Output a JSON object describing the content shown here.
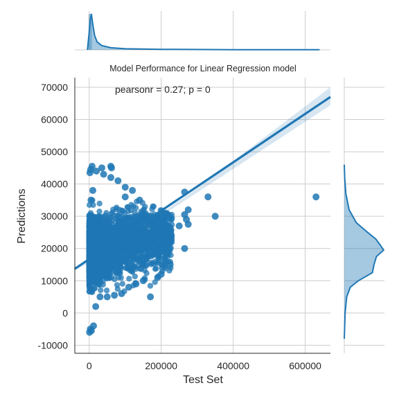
{
  "chart_data": {
    "type": "scatter",
    "title": "Model Performance for Linear Regression model",
    "xlabel": "Test Set",
    "ylabel": "Predictions",
    "annotation": "pearsonr = 0.27; p = 0",
    "xlim": [
      -40000,
      670000
    ],
    "ylim": [
      -12500,
      73000
    ],
    "xticks": [
      0,
      200000,
      400000,
      600000
    ],
    "xtick_labels": [
      "0",
      "200000",
      "400000",
      "600000"
    ],
    "yticks": [
      -10000,
      0,
      10000,
      20000,
      30000,
      40000,
      50000,
      60000,
      70000
    ],
    "ytick_labels": [
      "-10000",
      "0",
      "10000",
      "20000",
      "30000",
      "40000",
      "50000",
      "60000",
      "70000"
    ],
    "grid": true,
    "color": "#1f77b4",
    "regression_line": {
      "x": [
        -40000,
        670000
      ],
      "y": [
        13700,
        67000
      ]
    },
    "marginal_top": {
      "x": [
        -5000,
        0,
        3000,
        6000,
        10000,
        15000,
        22000,
        35000,
        60000,
        100000,
        200000,
        400000,
        640000
      ],
      "density": [
        0,
        0.5,
        0.85,
        1.0,
        0.7,
        0.4,
        0.22,
        0.12,
        0.06,
        0.03,
        0.015,
        0.006,
        0.004
      ]
    },
    "marginal_right": {
      "y": [
        -8000,
        0,
        5000,
        8000,
        10000,
        12500,
        15000,
        17500,
        19500,
        21000,
        23000,
        25000,
        28000,
        32000,
        37000,
        42000,
        46000
      ],
      "density": [
        0,
        0.02,
        0.06,
        0.15,
        0.35,
        0.7,
        0.74,
        0.8,
        0.98,
        0.9,
        0.78,
        0.58,
        0.3,
        0.12,
        0.04,
        0.01,
        0
      ]
    },
    "points": [
      [
        630000,
        36000
      ],
      [
        330000,
        36000
      ],
      [
        350000,
        30000
      ],
      [
        265000,
        37500
      ],
      [
        275000,
        32000
      ],
      [
        275000,
        27500
      ],
      [
        270000,
        29000
      ],
      [
        265000,
        20000
      ],
      [
        265000,
        30500
      ],
      [
        250000,
        27000
      ],
      [
        225000,
        15000
      ],
      [
        210000,
        14500
      ],
      [
        200000,
        12000
      ],
      [
        200000,
        19000
      ],
      [
        190000,
        11000
      ],
      [
        170000,
        5000
      ],
      [
        60000,
        45500
      ],
      [
        62000,
        45000
      ],
      [
        35000,
        45000
      ],
      [
        8000,
        45500
      ],
      [
        4000,
        44500
      ],
      [
        2000,
        43500
      ],
      [
        220000,
        23000
      ],
      [
        200000,
        26000
      ],
      [
        180000,
        28000
      ],
      [
        160000,
        30000
      ],
      [
        140000,
        35000
      ],
      [
        120000,
        38000
      ],
      [
        100000,
        39000
      ],
      [
        80000,
        41000
      ],
      [
        60000,
        42000
      ],
      [
        40000,
        43000
      ],
      [
        20000,
        44000
      ],
      [
        10000,
        38000
      ],
      [
        5000,
        35000
      ],
      [
        1000,
        -6000
      ],
      [
        3000,
        -5000
      ],
      [
        6000,
        -5500
      ],
      [
        12000,
        -4000
      ],
      [
        18000,
        2000
      ],
      [
        30000,
        5000
      ],
      [
        50000,
        5000
      ],
      [
        70000,
        5500
      ],
      [
        90000,
        6000
      ],
      [
        110000,
        8000
      ],
      [
        150000,
        10000
      ],
      [
        130000,
        9000
      ],
      [
        100000,
        36000
      ]
    ]
  }
}
